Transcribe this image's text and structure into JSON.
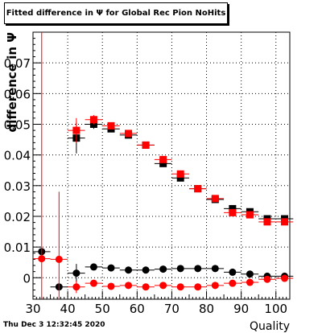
{
  "title": "Fitted difference in  Ψ  for Global Rec Pion NoHits",
  "timestamp": "Thu Dec  3 12:32:45 2020",
  "colors": {
    "black": "#000000",
    "red": "#ff0000",
    "grid": "#000000"
  },
  "chart_data": {
    "type": "scatter",
    "title": "Fitted difference in  Ψ  for Global Rec Pion NoHits",
    "xlabel": "Quality",
    "ylabel": "difference in  Ψ",
    "xlim": [
      30,
      104
    ],
    "ylim": [
      -0.007,
      0.08
    ],
    "xticks": [
      30,
      40,
      50,
      60,
      70,
      80,
      90,
      100
    ],
    "yticks": [
      0,
      0.01,
      0.02,
      0.03,
      0.04,
      0.05,
      0.06,
      0.07
    ],
    "ytick_labels": [
      "0",
      "0.01",
      "0.02",
      "0.03",
      "0.04",
      "0.05",
      "0.06",
      "0.07"
    ],
    "grid": true,
    "series": [
      {
        "color": "#000000",
        "marker": "square",
        "points": [
          {
            "x": 42.5,
            "y": 0.0455,
            "xerr": 2.5,
            "yerr": 0.005
          },
          {
            "x": 47.5,
            "y": 0.05,
            "xerr": 2.5,
            "yerr": 0.0015
          },
          {
            "x": 52.5,
            "y": 0.0485,
            "xerr": 2.5,
            "yerr": 0.0008
          },
          {
            "x": 57.5,
            "y": 0.0465,
            "xerr": 2.5,
            "yerr": 0.0006
          },
          {
            "x": 62.5,
            "y": 0.0432,
            "xerr": 2.5,
            "yerr": 0.0005
          },
          {
            "x": 67.5,
            "y": 0.0372,
            "xerr": 2.5,
            "yerr": 0.0005
          },
          {
            "x": 72.5,
            "y": 0.0325,
            "xerr": 2.5,
            "yerr": 0.0005
          },
          {
            "x": 77.5,
            "y": 0.029,
            "xerr": 2.5,
            "yerr": 0.0005
          },
          {
            "x": 82.5,
            "y": 0.0255,
            "xerr": 2.5,
            "yerr": 0.0005
          },
          {
            "x": 87.5,
            "y": 0.0225,
            "xerr": 2.5,
            "yerr": 0.0005
          },
          {
            "x": 92.5,
            "y": 0.0215,
            "xerr": 2.5,
            "yerr": 0.0005
          },
          {
            "x": 97.5,
            "y": 0.0192,
            "xerr": 2.5,
            "yerr": 0.0005
          },
          {
            "x": 102.5,
            "y": 0.0192,
            "xerr": 2.5,
            "yerr": 0.0005
          }
        ]
      },
      {
        "color": "#ff0000",
        "marker": "square",
        "points": [
          {
            "x": 42.5,
            "y": 0.048,
            "xerr": 2.5,
            "yerr": 0.004
          },
          {
            "x": 47.5,
            "y": 0.0515,
            "xerr": 2.5,
            "yerr": 0.0015
          },
          {
            "x": 52.5,
            "y": 0.0495,
            "xerr": 2.5,
            "yerr": 0.0008
          },
          {
            "x": 57.5,
            "y": 0.047,
            "xerr": 2.5,
            "yerr": 0.0006
          },
          {
            "x": 62.5,
            "y": 0.0432,
            "xerr": 2.5,
            "yerr": 0.0005
          },
          {
            "x": 67.5,
            "y": 0.0385,
            "xerr": 2.5,
            "yerr": 0.0005
          },
          {
            "x": 72.5,
            "y": 0.0338,
            "xerr": 2.5,
            "yerr": 0.0005
          },
          {
            "x": 77.5,
            "y": 0.029,
            "xerr": 2.5,
            "yerr": 0.0005
          },
          {
            "x": 82.5,
            "y": 0.0258,
            "xerr": 2.5,
            "yerr": 0.0005
          },
          {
            "x": 87.5,
            "y": 0.0212,
            "xerr": 2.5,
            "yerr": 0.0005
          },
          {
            "x": 92.5,
            "y": 0.0205,
            "xerr": 2.5,
            "yerr": 0.0005
          },
          {
            "x": 97.5,
            "y": 0.0182,
            "xerr": 2.5,
            "yerr": 0.0005
          },
          {
            "x": 102.5,
            "y": 0.0182,
            "xerr": 2.5,
            "yerr": 0.0005
          }
        ]
      },
      {
        "color": "#000000",
        "marker": "circle",
        "points": [
          {
            "x": 32.5,
            "y": 0.0085,
            "xerr": 2.5,
            "yerr": 0.0
          },
          {
            "x": 37.5,
            "y": -0.003,
            "xerr": 2.5,
            "yerr": 0.0
          },
          {
            "x": 42.5,
            "y": 0.0015,
            "xerr": 2.5,
            "yerr": 0.003
          },
          {
            "x": 47.5,
            "y": 0.0035,
            "xerr": 2.5,
            "yerr": 0.0008
          },
          {
            "x": 52.5,
            "y": 0.0032,
            "xerr": 2.5,
            "yerr": 0.0005
          },
          {
            "x": 57.5,
            "y": 0.0025,
            "xerr": 2.5,
            "yerr": 0.0004
          },
          {
            "x": 62.5,
            "y": 0.0025,
            "xerr": 2.5,
            "yerr": 0.0004
          },
          {
            "x": 67.5,
            "y": 0.0028,
            "xerr": 2.5,
            "yerr": 0.0004
          },
          {
            "x": 72.5,
            "y": 0.003,
            "xerr": 2.5,
            "yerr": 0.0004
          },
          {
            "x": 77.5,
            "y": 0.003,
            "xerr": 2.5,
            "yerr": 0.0004
          },
          {
            "x": 82.5,
            "y": 0.003,
            "xerr": 2.5,
            "yerr": 0.0004
          },
          {
            "x": 87.5,
            "y": 0.0018,
            "xerr": 2.5,
            "yerr": 0.0004
          },
          {
            "x": 92.5,
            "y": 0.0012,
            "xerr": 2.5,
            "yerr": 0.0004
          },
          {
            "x": 97.5,
            "y": 0.0005,
            "xerr": 2.5,
            "yerr": 0.0004
          },
          {
            "x": 102.5,
            "y": 0.0005,
            "xerr": 2.5,
            "yerr": 0.0004
          }
        ]
      },
      {
        "color": "#ff0000",
        "marker": "circle",
        "points": [
          {
            "x": 32.5,
            "y": 0.0062,
            "xerr": 2.5,
            "yerr": 0.0,
            "ybar": [
              -0.007,
              0.08
            ]
          },
          {
            "x": 37.5,
            "y": 0.006,
            "xerr": 2.5,
            "yerr": 0.0,
            "ybar": [
              -0.007,
              0.028
            ]
          },
          {
            "x": 42.5,
            "y": -0.003,
            "xerr": 2.5,
            "yerr": 0.002
          },
          {
            "x": 47.5,
            "y": -0.0018,
            "xerr": 2.5,
            "yerr": 0.0006
          },
          {
            "x": 52.5,
            "y": -0.0028,
            "xerr": 2.5,
            "yerr": 0.0005
          },
          {
            "x": 57.5,
            "y": -0.0025,
            "xerr": 2.5,
            "yerr": 0.0004
          },
          {
            "x": 62.5,
            "y": -0.003,
            "xerr": 2.5,
            "yerr": 0.0004
          },
          {
            "x": 67.5,
            "y": -0.0025,
            "xerr": 2.5,
            "yerr": 0.0004
          },
          {
            "x": 72.5,
            "y": -0.003,
            "xerr": 2.5,
            "yerr": 0.0004
          },
          {
            "x": 77.5,
            "y": -0.003,
            "xerr": 2.5,
            "yerr": 0.0004
          },
          {
            "x": 82.5,
            "y": -0.0025,
            "xerr": 2.5,
            "yerr": 0.0004
          },
          {
            "x": 87.5,
            "y": -0.0018,
            "xerr": 2.5,
            "yerr": 0.0004
          },
          {
            "x": 92.5,
            "y": -0.0015,
            "xerr": 2.5,
            "yerr": 0.0004
          },
          {
            "x": 97.5,
            "y": -0.0005,
            "xerr": 2.5,
            "yerr": 0.0004
          },
          {
            "x": 102.5,
            "y": -0.0002,
            "xerr": 2.5,
            "yerr": 0.0004
          }
        ]
      }
    ]
  }
}
